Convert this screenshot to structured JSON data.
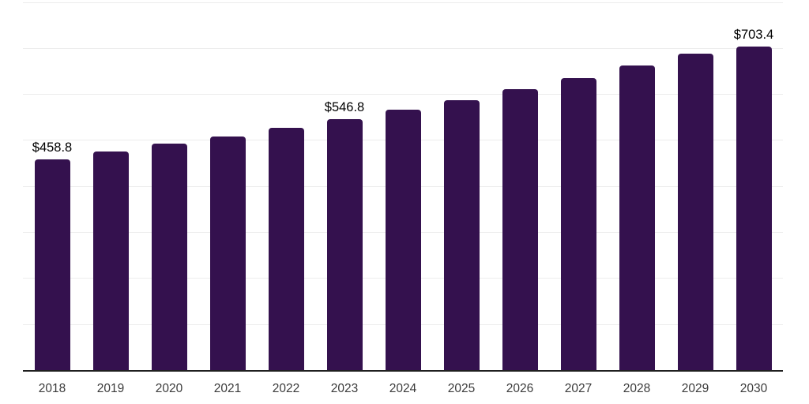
{
  "chart": {
    "background_color": "#ffffff",
    "bar_color": "#34114e",
    "gridline_color": "#ececec",
    "axis_line_color": "#1f1f1f",
    "value_label_color": "#000000",
    "tick_label_color": "#3b3b3b"
  },
  "chart_data": {
    "type": "bar",
    "title": "",
    "xlabel": "",
    "ylabel": "",
    "categories": [
      "2018",
      "2019",
      "2020",
      "2021",
      "2022",
      "2023",
      "2024",
      "2025",
      "2026",
      "2027",
      "2028",
      "2029",
      "2030"
    ],
    "values": [
      458.8,
      476.0,
      492.5,
      509.0,
      528.0,
      546.8,
      567.5,
      588.0,
      611.5,
      636.0,
      663.0,
      688.5,
      703.4
    ],
    "value_labels": [
      "$458.8",
      "",
      "",
      "",
      "",
      "$546.8",
      "",
      "",
      "",
      "",
      "",
      "",
      "$703.4"
    ],
    "value_prefix": "$",
    "ylim": [
      0,
      800
    ],
    "gridline_step": 100,
    "grid": "horizontal",
    "legend": "none",
    "y_axis_tick_labels_visible": false
  }
}
